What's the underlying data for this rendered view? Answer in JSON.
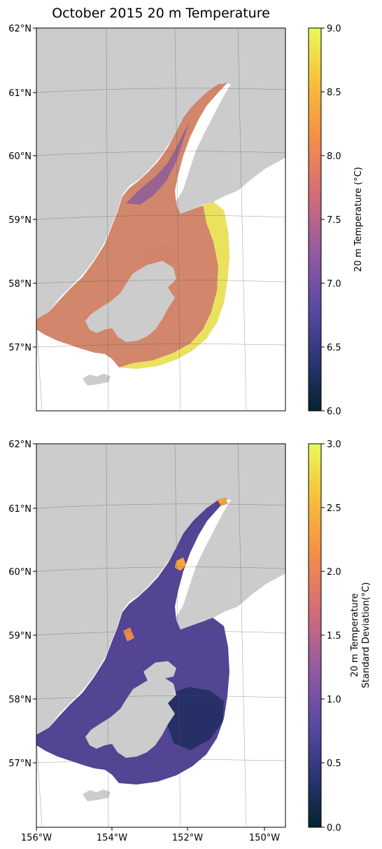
{
  "title": "October 2015 20 m Temperature",
  "lat_labels": [
    "62°N",
    "61°N",
    "60°N",
    "59°N",
    "58°N",
    "57°N"
  ],
  "lon_labels": [
    "156°W",
    "154°W",
    "152°W",
    "150°W"
  ],
  "panels": [
    {
      "id": "temperature",
      "colorbar": {
        "label_lines": [
          "20 m Temperature (°C)"
        ],
        "ticks": [
          "9.0",
          "8.5",
          "8.0",
          "7.5",
          "7.0",
          "6.5",
          "6.0"
        ],
        "range": [
          6.0,
          9.0
        ],
        "colormap": "thermal"
      }
    },
    {
      "id": "std-dev",
      "colorbar": {
        "label_lines": [
          "20 m Temperature",
          "Standard Deviation(°C)"
        ],
        "ticks": [
          "3.0",
          "2.5",
          "2.0",
          "1.5",
          "1.0",
          "0.5",
          "0.0"
        ],
        "range": [
          0.0,
          3.0
        ],
        "colormap": "thermal"
      }
    }
  ],
  "colors": {
    "land": "#cccccc",
    "ocean_background": "#ffffff",
    "thermal_stops": [
      "#04232e",
      "#2c3779",
      "#5f4aa5",
      "#9a5b9e",
      "#d56d77",
      "#f38e47",
      "#f7c03b",
      "#e8fa5b"
    ]
  }
}
